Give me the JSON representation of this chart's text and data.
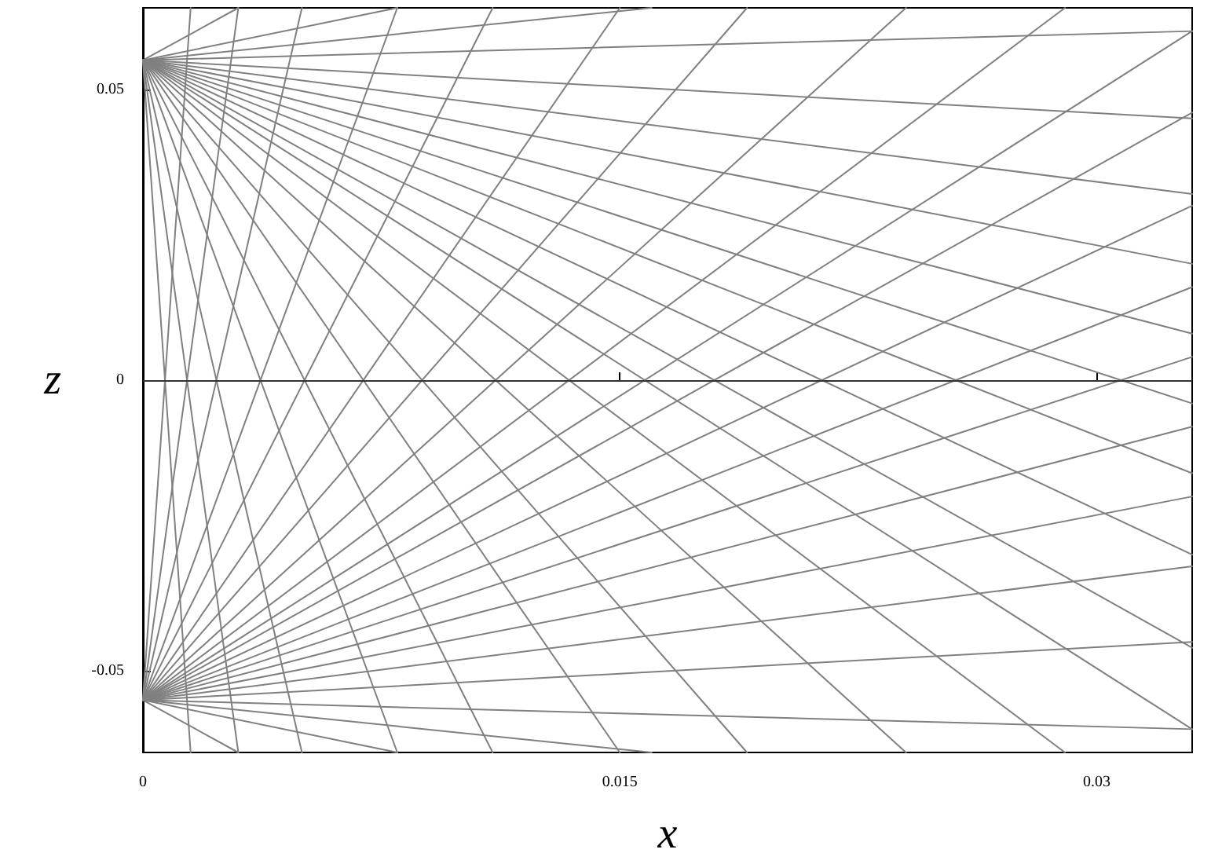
{
  "chart_data": {
    "type": "line",
    "xlabel": "x",
    "ylabel": "z",
    "xlim": [
      0,
      0.033
    ],
    "ylim": [
      -0.064,
      0.064
    ],
    "xticks": [
      0,
      0.015,
      0.03
    ],
    "yticks": [
      -0.05,
      0,
      0.05
    ],
    "grid": false,
    "marker": "none",
    "line_style": "solid",
    "ref_lines": [
      {
        "axis": "y",
        "value": 0,
        "color": "#333333"
      }
    ],
    "series": [
      {
        "color": "#808080",
        "x": [
          0,
          0.003
        ],
        "values": [
          0.055,
          0.064
        ]
      },
      {
        "color": "#808080",
        "x": [
          0,
          0.008
        ],
        "values": [
          0.055,
          0.064
        ]
      },
      {
        "color": "#808080",
        "x": [
          0,
          0.016
        ],
        "values": [
          0.055,
          0.064
        ]
      },
      {
        "color": "#808080",
        "x": [
          0,
          0.033
        ],
        "values": [
          0.055,
          0.06
        ]
      },
      {
        "color": "#808080",
        "x": [
          0,
          0.033
        ],
        "values": [
          0.055,
          0.045
        ]
      },
      {
        "color": "#808080",
        "x": [
          0,
          0.033
        ],
        "values": [
          0.055,
          0.032
        ]
      },
      {
        "color": "#808080",
        "x": [
          0,
          0.033
        ],
        "values": [
          0.055,
          0.02
        ]
      },
      {
        "color": "#808080",
        "x": [
          0,
          0.033
        ],
        "values": [
          0.055,
          0.008
        ]
      },
      {
        "color": "#808080",
        "x": [
          0,
          0.033
        ],
        "values": [
          0.055,
          -0.004
        ]
      },
      {
        "color": "#808080",
        "x": [
          0,
          0.033
        ],
        "values": [
          0.055,
          -0.016
        ]
      },
      {
        "color": "#808080",
        "x": [
          0,
          0.033
        ],
        "values": [
          0.055,
          -0.03
        ]
      },
      {
        "color": "#808080",
        "x": [
          0,
          0.033
        ],
        "values": [
          0.055,
          -0.046
        ]
      },
      {
        "color": "#808080",
        "x": [
          0,
          0.033
        ],
        "values": [
          0.055,
          -0.06
        ]
      },
      {
        "color": "#808080",
        "x": [
          0,
          0.029
        ],
        "values": [
          0.055,
          -0.064
        ]
      },
      {
        "color": "#808080",
        "x": [
          0,
          0.024
        ],
        "values": [
          0.055,
          -0.064
        ]
      },
      {
        "color": "#808080",
        "x": [
          0,
          0.019
        ],
        "values": [
          0.055,
          -0.064
        ]
      },
      {
        "color": "#808080",
        "x": [
          0,
          0.015
        ],
        "values": [
          0.055,
          -0.064
        ]
      },
      {
        "color": "#808080",
        "x": [
          0,
          0.011
        ],
        "values": [
          0.055,
          -0.064
        ]
      },
      {
        "color": "#808080",
        "x": [
          0,
          0.008
        ],
        "values": [
          0.055,
          -0.064
        ]
      },
      {
        "color": "#808080",
        "x": [
          0,
          0.005
        ],
        "values": [
          0.055,
          -0.064
        ]
      },
      {
        "color": "#808080",
        "x": [
          0,
          0.003
        ],
        "values": [
          0.055,
          -0.064
        ]
      },
      {
        "color": "#808080",
        "x": [
          0,
          0.0015
        ],
        "values": [
          0.055,
          -0.064
        ]
      },
      {
        "color": "#808080",
        "x": [
          0,
          0.003
        ],
        "values": [
          -0.055,
          -0.064
        ]
      },
      {
        "color": "#808080",
        "x": [
          0,
          0.008
        ],
        "values": [
          -0.055,
          -0.064
        ]
      },
      {
        "color": "#808080",
        "x": [
          0,
          0.016
        ],
        "values": [
          -0.055,
          -0.064
        ]
      },
      {
        "color": "#808080",
        "x": [
          0,
          0.033
        ],
        "values": [
          -0.055,
          -0.06
        ]
      },
      {
        "color": "#808080",
        "x": [
          0,
          0.033
        ],
        "values": [
          -0.055,
          -0.045
        ]
      },
      {
        "color": "#808080",
        "x": [
          0,
          0.033
        ],
        "values": [
          -0.055,
          -0.032
        ]
      },
      {
        "color": "#808080",
        "x": [
          0,
          0.033
        ],
        "values": [
          -0.055,
          -0.02
        ]
      },
      {
        "color": "#808080",
        "x": [
          0,
          0.033
        ],
        "values": [
          -0.055,
          -0.008
        ]
      },
      {
        "color": "#808080",
        "x": [
          0,
          0.033
        ],
        "values": [
          -0.055,
          0.004
        ]
      },
      {
        "color": "#808080",
        "x": [
          0,
          0.033
        ],
        "values": [
          -0.055,
          0.016
        ]
      },
      {
        "color": "#808080",
        "x": [
          0,
          0.033
        ],
        "values": [
          -0.055,
          0.03
        ]
      },
      {
        "color": "#808080",
        "x": [
          0,
          0.033
        ],
        "values": [
          -0.055,
          0.046
        ]
      },
      {
        "color": "#808080",
        "x": [
          0,
          0.033
        ],
        "values": [
          -0.055,
          0.06
        ]
      },
      {
        "color": "#808080",
        "x": [
          0,
          0.029
        ],
        "values": [
          -0.055,
          0.064
        ]
      },
      {
        "color": "#808080",
        "x": [
          0,
          0.024
        ],
        "values": [
          -0.055,
          0.064
        ]
      },
      {
        "color": "#808080",
        "x": [
          0,
          0.019
        ],
        "values": [
          -0.055,
          0.064
        ]
      },
      {
        "color": "#808080",
        "x": [
          0,
          0.015
        ],
        "values": [
          -0.055,
          0.064
        ]
      },
      {
        "color": "#808080",
        "x": [
          0,
          0.011
        ],
        "values": [
          -0.055,
          0.064
        ]
      },
      {
        "color": "#808080",
        "x": [
          0,
          0.008
        ],
        "values": [
          -0.055,
          0.064
        ]
      },
      {
        "color": "#808080",
        "x": [
          0,
          0.005
        ],
        "values": [
          -0.055,
          0.064
        ]
      },
      {
        "color": "#808080",
        "x": [
          0,
          0.003
        ],
        "values": [
          -0.055,
          0.064
        ]
      },
      {
        "color": "#808080",
        "x": [
          0,
          0.0015
        ],
        "values": [
          -0.055,
          0.064
        ]
      }
    ]
  }
}
